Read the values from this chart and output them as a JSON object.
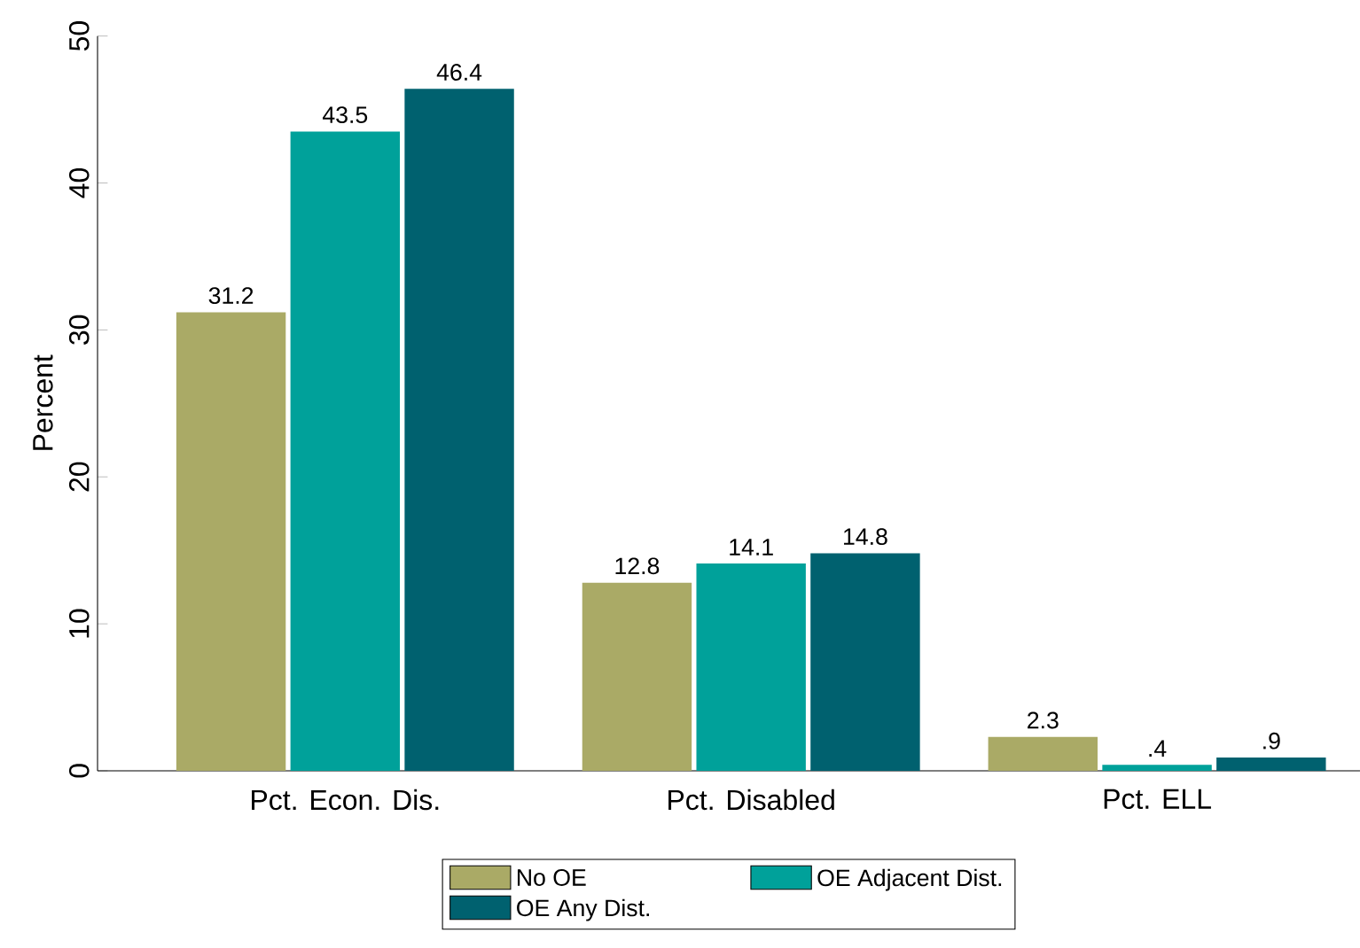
{
  "chart_data": {
    "type": "bar",
    "ylabel": "Percent",
    "categories": [
      "Pct. Econ. Dis.",
      "Pct. Disabled",
      "Pct. ELL"
    ],
    "series": [
      {
        "name": "No OE",
        "color": "#aaaa66",
        "values": [
          31.2,
          12.8,
          2.3
        ],
        "value_labels": [
          "31.2",
          "12.8",
          "2.3"
        ]
      },
      {
        "name": "OE Adjacent Dist.",
        "color": "#00a19a",
        "values": [
          43.5,
          14.1,
          0.4
        ],
        "value_labels": [
          "43.5",
          "14.1",
          ".4"
        ]
      },
      {
        "name": "OE Any Dist.",
        "color": "#00616f",
        "values": [
          46.4,
          14.8,
          0.9
        ],
        "value_labels": [
          "46.4",
          "14.8",
          ".9"
        ]
      }
    ],
    "ylim": [
      0,
      50
    ],
    "yticks": [
      0,
      10,
      20,
      30,
      40,
      50
    ],
    "legend": "bottom"
  }
}
